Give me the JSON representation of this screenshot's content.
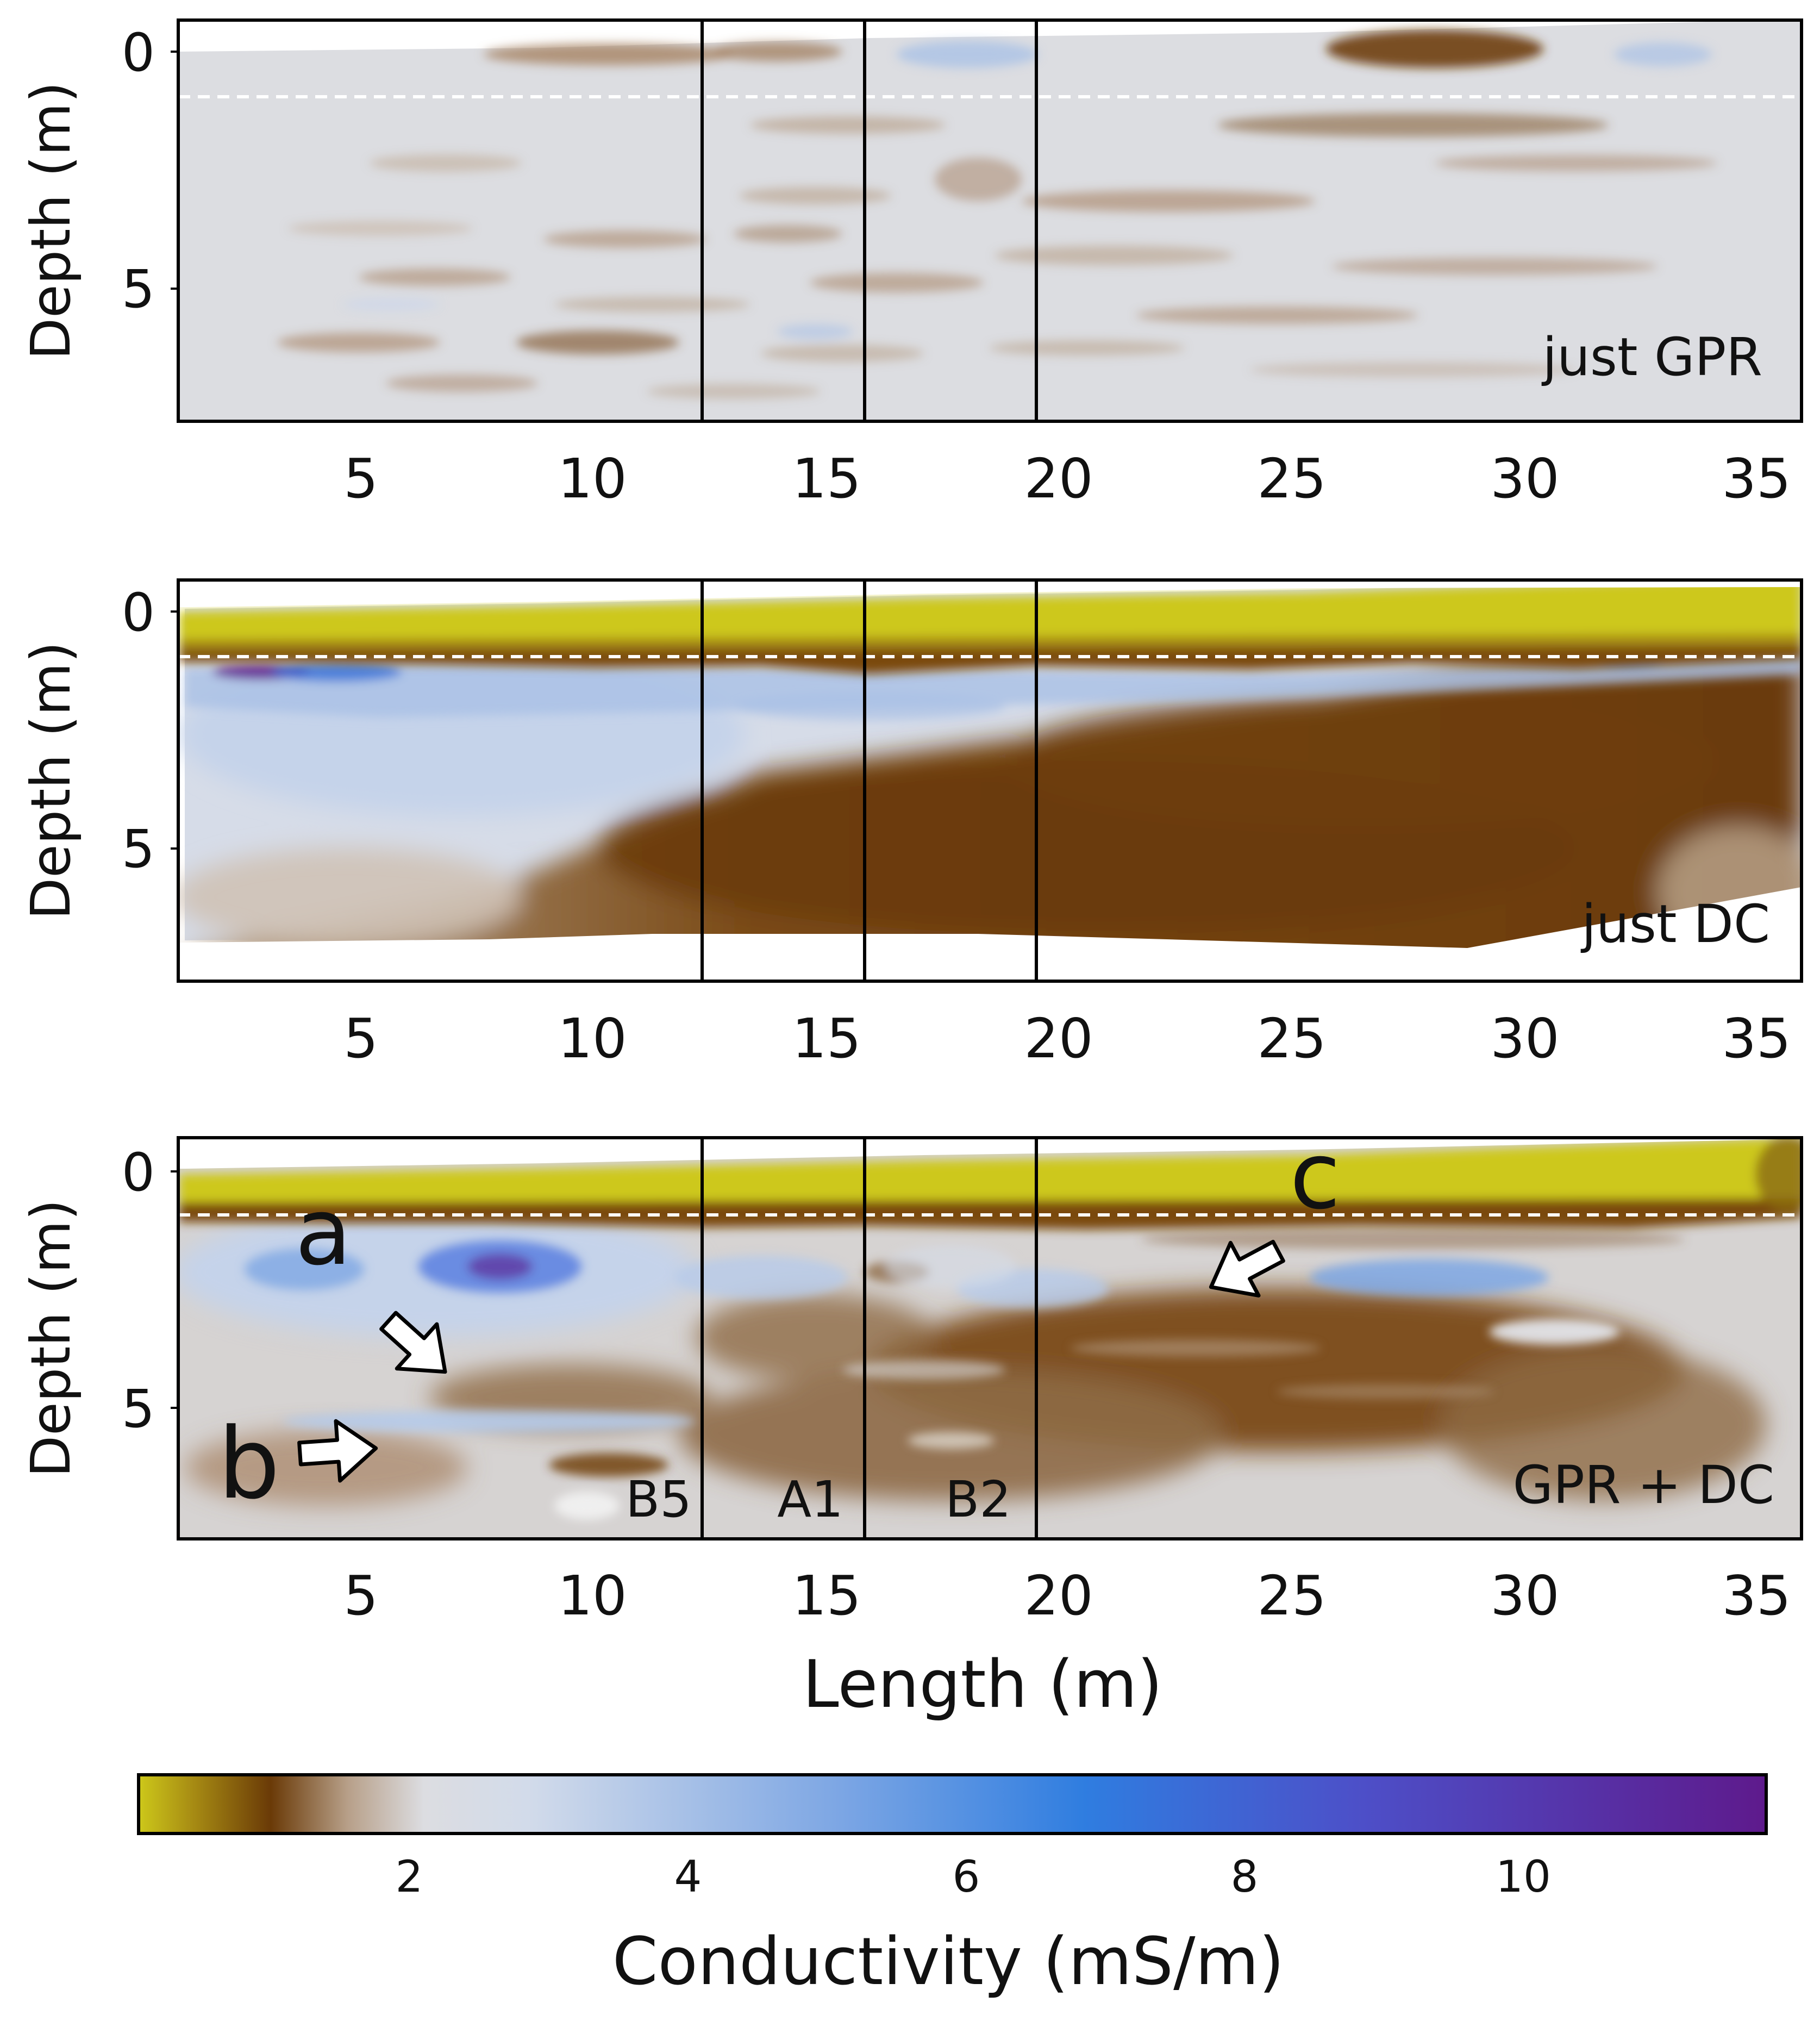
{
  "figure": {
    "xlabel": "Length (m)"
  },
  "chart_data": [
    {
      "type": "heatmap",
      "panel_label": "just GPR",
      "ylabel": "Depth (m)",
      "xlim": [
        1,
        36
      ],
      "ylim": [
        8.5,
        -0.5
      ],
      "x_ticks": [
        5,
        10,
        15,
        20,
        25,
        30,
        35
      ],
      "y_ticks": [
        0,
        5
      ],
      "boreholes_x": [
        12.4,
        15.9,
        19.6
      ],
      "water_table_depth": 1.0,
      "description_of_field": "mostly ~2 mS/m with thin sub-horizontal brown layers; dark brown lens near surface at x≈27–30; light blue patches near surface at x≈16–19 and x≈32–34",
      "annotations": []
    },
    {
      "type": "heatmap",
      "panel_label": "just DC",
      "ylabel": "Depth (m)",
      "xlim": [
        1,
        36
      ],
      "ylim": [
        8.5,
        -0.5
      ],
      "x_ticks": [
        5,
        10,
        15,
        20,
        25,
        30,
        35
      ],
      "y_ticks": [
        0,
        5
      ],
      "boreholes_x": [
        12.4,
        15.9,
        19.6
      ],
      "water_table_depth": 1.0,
      "description_of_field": "low-conductivity yellow layer above ~1 m; blue (3–10 mS/m) zone from 1–4 m thinning to the east; dark brown (~1 mS/m) below ~4 m rising eastward; no data below ~7 m",
      "annotations": []
    },
    {
      "type": "heatmap",
      "panel_label": "GPR + DC",
      "ylabel": "Depth (m)",
      "xlim": [
        1,
        36
      ],
      "ylim": [
        8.5,
        -0.5
      ],
      "x_ticks": [
        5,
        10,
        15,
        20,
        25,
        30,
        35
      ],
      "y_ticks": [
        0,
        5
      ],
      "boreholes_x": [
        12.4,
        15.9,
        19.6
      ],
      "water_table_depth": 1.0,
      "description_of_field": "yellow surface layer to ~1 m; blue conductive zone 1–4 m with maximum near x≈8, depth 2 m; layered brown structure below; light layer at ~5.5 m from x≈5–12",
      "borehole_labels": [
        "B5",
        "A1",
        "B2"
      ],
      "annotations": [
        "a",
        "b",
        "c"
      ]
    }
  ],
  "colorbar": {
    "label": "Conductivity (mS/m)",
    "range": [
      0,
      11.7
    ],
    "ticks": [
      2,
      4,
      6,
      8,
      10
    ],
    "stops": [
      {
        "value": 0.0,
        "color": "#cdc81a"
      },
      {
        "value": 0.4,
        "color": "#a68a13"
      },
      {
        "value": 0.95,
        "color": "#6a3a07"
      },
      {
        "value": 1.5,
        "color": "#b79f88"
      },
      {
        "value": 2.05,
        "color": "#dcdde1"
      },
      {
        "value": 2.8,
        "color": "#d2dbea"
      },
      {
        "value": 5.0,
        "color": "#7ea7e4"
      },
      {
        "value": 6.8,
        "color": "#2f7de0"
      },
      {
        "value": 8.8,
        "color": "#4d4fc8"
      },
      {
        "value": 11.7,
        "color": "#5e1a8c"
      }
    ]
  }
}
